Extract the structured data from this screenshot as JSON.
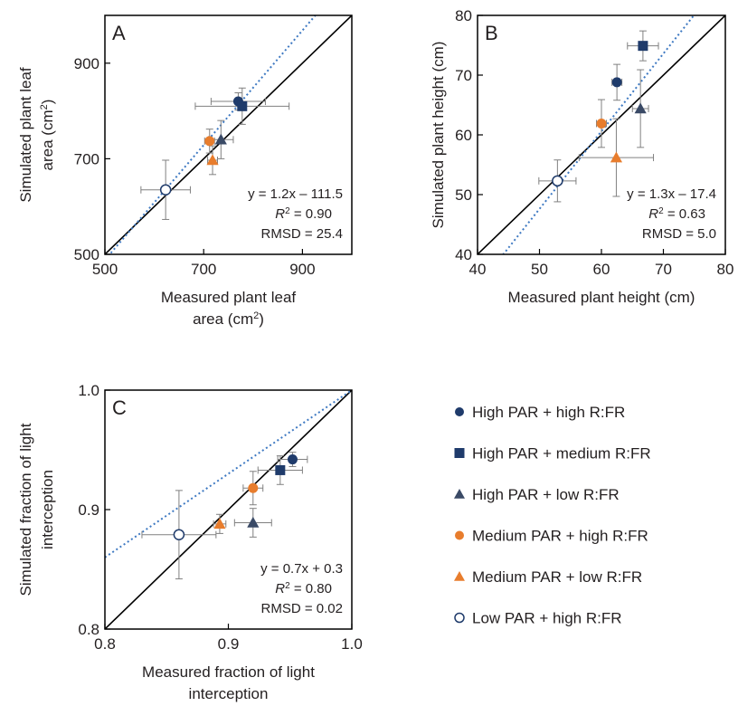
{
  "colors": {
    "high_par": "#1f3b6b",
    "medium_par": "#e87d2d",
    "low_par": "#1f3b6b",
    "identity_line": "#000000",
    "regression_line": "#3e79c2",
    "error_bar": "#808080"
  },
  "chart_data": [
    {
      "type": "scatter",
      "panel": "A",
      "xlabel_lines": [
        "Measured plant leaf",
        "area (cm"
      ],
      "xlabel_sup": "2",
      "xlabel_close": ")",
      "ylabel_lines": [
        "Simulated plant leaf",
        "area (cm"
      ],
      "ylabel_sup": "2",
      "ylabel_close": ")",
      "xlim": [
        500,
        1000
      ],
      "ylim": [
        500,
        1000
      ],
      "xticks": [
        500,
        700,
        900
      ],
      "yticks": [
        500,
        700,
        900
      ],
      "xtick_labels": [
        "500",
        "700",
        "900"
      ],
      "ytick_labels": [
        "500",
        "700",
        "900"
      ],
      "regression": {
        "slope": 1.2,
        "intercept": -111.5
      },
      "annotation": {
        "equation": "y = 1.2x – 111.5",
        "r2_label": "R",
        "r2_sup": "2",
        "r2_value": " = 0.90",
        "rmsd": "RMSD = 25.4"
      },
      "points": [
        {
          "series": 0,
          "x": 770,
          "y": 820,
          "xerr": 55,
          "yerr": 18
        },
        {
          "series": 1,
          "x": 778,
          "y": 810,
          "xerr": 95,
          "yerr": 38
        },
        {
          "series": 2,
          "x": 735,
          "y": 740,
          "xerr": 25,
          "yerr": 40
        },
        {
          "series": 3,
          "x": 712,
          "y": 737,
          "xerr": 10,
          "yerr": 25
        },
        {
          "series": 4,
          "x": 718,
          "y": 697,
          "xerr": 10,
          "yerr": 30
        },
        {
          "series": 5,
          "x": 623,
          "y": 635,
          "xerr": 50,
          "yerr": 62
        }
      ]
    },
    {
      "type": "scatter",
      "panel": "B",
      "xlabel_lines": [
        "Measured plant height (cm)"
      ],
      "ylabel_lines": [
        "Simulated plant height (cm)"
      ],
      "xlim": [
        40,
        80
      ],
      "ylim": [
        40,
        80
      ],
      "xticks": [
        40,
        50,
        60,
        70,
        80
      ],
      "yticks": [
        40,
        50,
        60,
        70,
        80
      ],
      "xtick_labels": [
        "40",
        "50",
        "60",
        "70",
        "80"
      ],
      "ytick_labels": [
        "40",
        "50",
        "60",
        "70",
        "80"
      ],
      "regression": {
        "slope": 1.3,
        "intercept": -17.4
      },
      "annotation": {
        "equation": "y = 1.3x – 17.4",
        "r2_label": "R",
        "r2_sup": "2",
        "r2_value": " = 0.63",
        "rmsd": "RMSD = 5.0"
      },
      "points": [
        {
          "series": 0,
          "x": 62.5,
          "y": 68.8,
          "xerr": 0.8,
          "yerr": 3.0
        },
        {
          "series": 1,
          "x": 66.7,
          "y": 74.9,
          "xerr": 2.5,
          "yerr": 2.5
        },
        {
          "series": 2,
          "x": 66.3,
          "y": 64.4,
          "xerr": 1.3,
          "yerr": 6.5
        },
        {
          "series": 3,
          "x": 60.0,
          "y": 61.9,
          "xerr": 0.8,
          "yerr": 4.0
        },
        {
          "series": 4,
          "x": 62.4,
          "y": 56.2,
          "xerr": 6.0,
          "yerr": 6.5
        },
        {
          "series": 5,
          "x": 52.9,
          "y": 52.3,
          "xerr": 3.0,
          "yerr": 3.5
        }
      ]
    },
    {
      "type": "scatter",
      "panel": "C",
      "xlabel_lines": [
        "Measured fraction of light",
        "interception"
      ],
      "ylabel_lines": [
        "Simulated fraction of light",
        "interception"
      ],
      "xlim": [
        0.8,
        1.0
      ],
      "ylim": [
        0.8,
        1.0
      ],
      "xticks": [
        0.8,
        0.9,
        1.0
      ],
      "yticks": [
        0.8,
        0.9,
        1.0
      ],
      "xtick_labels": [
        "0.8",
        "0.9",
        "1.0"
      ],
      "ytick_labels": [
        "0.8",
        "0.9",
        "1.0"
      ],
      "regression": {
        "slope": 0.7,
        "intercept": 0.3
      },
      "annotation": {
        "equation": "y = 0.7x + 0.3",
        "r2_label": "R",
        "r2_sup": "2",
        "r2_value": " = 0.80",
        "rmsd": "RMSD = 0.02"
      },
      "points": [
        {
          "series": 0,
          "x": 0.952,
          "y": 0.942,
          "xerr": 0.012,
          "yerr": 0.006
        },
        {
          "series": 1,
          "x": 0.942,
          "y": 0.933,
          "xerr": 0.018,
          "yerr": 0.012
        },
        {
          "series": 2,
          "x": 0.92,
          "y": 0.889,
          "xerr": 0.015,
          "yerr": 0.012
        },
        {
          "series": 3,
          "x": 0.92,
          "y": 0.918,
          "xerr": 0.008,
          "yerr": 0.014
        },
        {
          "series": 4,
          "x": 0.893,
          "y": 0.888,
          "xerr": 0.005,
          "yerr": 0.008
        },
        {
          "series": 5,
          "x": 0.86,
          "y": 0.879,
          "xerr": 0.03,
          "yerr": 0.037
        }
      ]
    }
  ],
  "legend": {
    "items": [
      {
        "label": "High PAR + high R:FR",
        "marker": "circle-filled",
        "color": "#1f3b6b"
      },
      {
        "label": "High PAR + medium R:FR",
        "marker": "square-filled",
        "color": "#1f3b6b"
      },
      {
        "label": "High PAR + low R:FR",
        "marker": "triangle-filled",
        "color": "#3a4a66"
      },
      {
        "label": "Medium PAR + high R:FR",
        "marker": "circle-filled",
        "color": "#e87d2d"
      },
      {
        "label": "Medium PAR + low R:FR",
        "marker": "triangle-filled",
        "color": "#e87d2d"
      },
      {
        "label": "Low PAR + high R:FR",
        "marker": "circle-open",
        "color": "#1f3b6b"
      }
    ]
  }
}
